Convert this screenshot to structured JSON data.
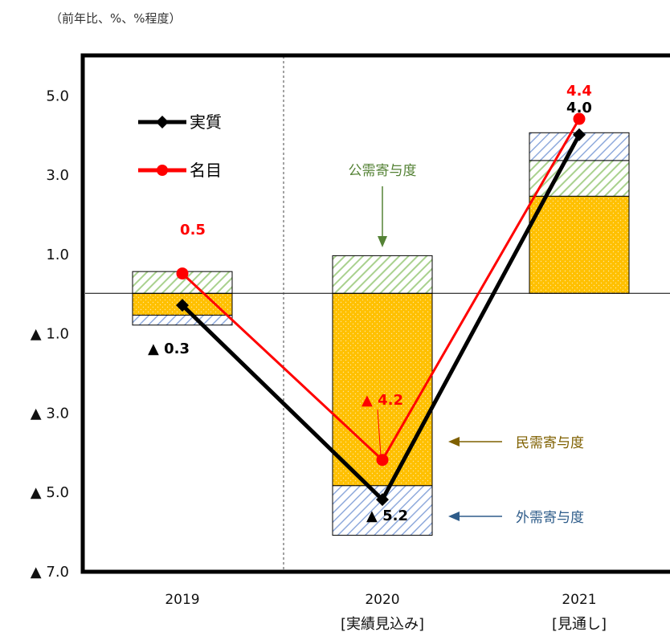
{
  "unit_label": "（前年比、%、%程度）",
  "chart_data": {
    "type": "bar",
    "categories": [
      "2019",
      "2020",
      "2021"
    ],
    "category_sublabels": [
      "",
      "[実績見込み]",
      "[見通し]"
    ],
    "ylim": [
      -7.0,
      6.0
    ],
    "y_ticks": [
      {
        "value": 5.0,
        "label": "5.0"
      },
      {
        "value": 3.0,
        "label": "3.0"
      },
      {
        "value": 1.0,
        "label": "1.0"
      },
      {
        "value": -1.0,
        "label": "▲ 1.0"
      },
      {
        "value": -3.0,
        "label": "▲ 3.0"
      },
      {
        "value": -5.0,
        "label": "▲ 5.0"
      },
      {
        "value": -7.0,
        "label": "▲ 7.0"
      }
    ],
    "stacked_series": [
      {
        "name": "民需寄与度",
        "key": "private",
        "values": [
          -0.55,
          -4.85,
          2.45
        ],
        "color": "#ffc000"
      },
      {
        "name": "公需寄与度",
        "key": "public",
        "values": [
          0.55,
          0.95,
          0.9
        ],
        "color": "#a9d18e"
      },
      {
        "name": "外需寄与度",
        "key": "external",
        "values": [
          -0.25,
          -1.25,
          0.7
        ],
        "color": "#8faadc"
      }
    ],
    "line_series": [
      {
        "name": "実質",
        "values": [
          -0.3,
          -5.2,
          4.0
        ],
        "labels": [
          "▲ 0.3",
          "▲ 5.2",
          "4.0"
        ],
        "color": "#000000"
      },
      {
        "name": "名目",
        "values": [
          0.5,
          -4.2,
          4.4
        ],
        "labels": [
          "0.5",
          "▲ 4.2",
          "4.4"
        ],
        "color": "#ff0000"
      }
    ],
    "annotations": [
      {
        "text": "公需寄与度",
        "color": "#548235"
      },
      {
        "text": "民需寄与度",
        "color": "#7f6000"
      },
      {
        "text": "外需寄与度",
        "color": "#2e5c8a"
      }
    ],
    "legend": {
      "position": "top-left",
      "entries": [
        "実質",
        "名目"
      ]
    },
    "grid": false
  }
}
